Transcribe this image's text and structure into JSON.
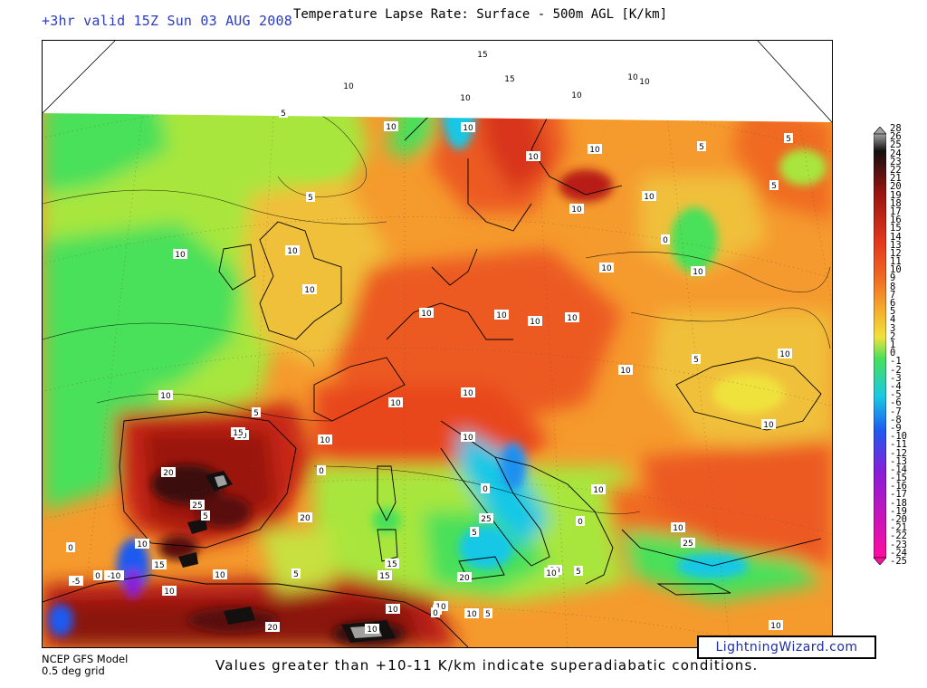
{
  "header": {
    "valid_time": "+3hr valid 15Z Sun 03 AUG 2008",
    "title": "Temperature Lapse Rate: Surface - 500m AGL  [K/km]"
  },
  "footer": {
    "model_line1": "NCEP GFS Model",
    "model_line2": "0.5 deg grid",
    "note": "Values greater than +10-11 K/km indicate superadiabatic conditions.",
    "credit": "LightningWizard.com"
  },
  "colorbar": {
    "labels": [
      "28",
      "26",
      "25",
      "24",
      "23",
      "22",
      "21",
      "20",
      "19",
      "18",
      "17",
      "16",
      "15",
      "14",
      "13",
      "12",
      "11",
      "10",
      "9",
      "8",
      "7",
      "6",
      "5",
      "4",
      "3",
      "2",
      "1",
      "0",
      "-1",
      "-2",
      "-3",
      "-4",
      "-5",
      "-6",
      "-7",
      "-8",
      "-9",
      "-10",
      "-11",
      "-12",
      "-13",
      "-14",
      "-15",
      "-16",
      "-17",
      "-18",
      "-19",
      "-20",
      "-21",
      "-22",
      "-23",
      "-24",
      "-25"
    ]
  },
  "contour_labels": [
    "15",
    "10",
    "10",
    "10",
    "15",
    "10",
    "10",
    "5",
    "10",
    "10",
    "10",
    "10",
    "5",
    "5",
    "10",
    "10",
    "5",
    "10",
    "0",
    "5",
    "10",
    "10",
    "10",
    "10",
    "10",
    "10",
    "10",
    "10",
    "10",
    "10",
    "10",
    "10",
    "5",
    "5",
    "10",
    "10",
    "10",
    "10",
    "10",
    "10",
    "0",
    "5",
    "0",
    "5",
    "15",
    "10",
    "10",
    "15",
    "20",
    "20",
    "25",
    "-5",
    "0",
    "10",
    "15",
    "10",
    "15",
    "20",
    "25",
    "20",
    "25",
    "20",
    "5",
    "0",
    "10",
    "10",
    "10",
    "0",
    "0",
    "10",
    "5",
    "-10",
    "10",
    "10",
    "0",
    "5",
    "10"
  ],
  "colors": {
    "very_low": "#ff0ea0",
    "low_purple": "#8a1cd8",
    "blue": "#1e5af0",
    "cyan": "#19c8e6",
    "green": "#48e05a",
    "yellow_green": "#a8e63c",
    "yellow": "#f0e23c",
    "orange": "#f59a2d",
    "orange_red": "#f06a22",
    "red": "#e63a1e",
    "dark_red": "#9a1410",
    "black": "#141010",
    "grey": "#a0a0a0"
  }
}
